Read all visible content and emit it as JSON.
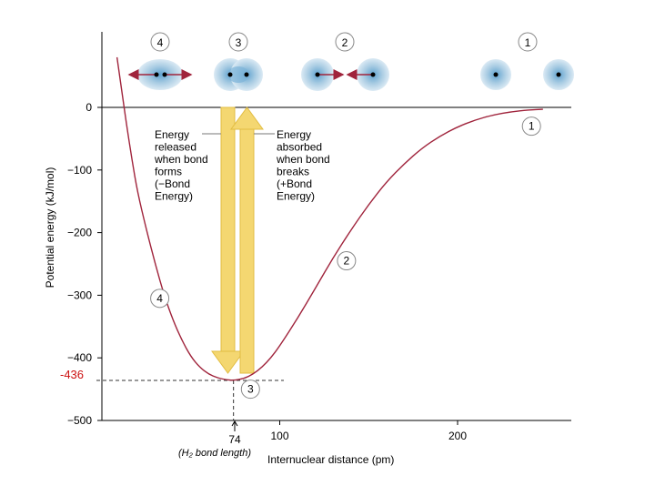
{
  "chart_data": {
    "type": "line",
    "xlabel": "Internuclear distance (pm)",
    "ylabel": "Potential energy (kJ/mol)",
    "ylim": [
      -500,
      0
    ],
    "xlim": [
      0,
      240
    ],
    "y_ticks": [
      {
        "v": 0,
        "label": "0"
      },
      {
        "v": -100,
        "label": "−100"
      },
      {
        "v": -200,
        "label": "−200"
      },
      {
        "v": -300,
        "label": "−300"
      },
      {
        "v": -400,
        "label": "−400"
      },
      {
        "v": -500,
        "label": "−500"
      }
    ],
    "x_ticks": [
      {
        "v": 100,
        "label": "100"
      },
      {
        "v": 200,
        "label": "200"
      }
    ],
    "series": [
      {
        "color": "#a0243c",
        "points": [
          [
            8.5,
            80
          ],
          [
            10,
            50
          ],
          [
            12,
            10
          ],
          [
            14,
            -30
          ],
          [
            17,
            -85
          ],
          [
            20,
            -135
          ],
          [
            25,
            -195
          ],
          [
            30,
            -250
          ],
          [
            35,
            -300
          ],
          [
            40,
            -340
          ],
          [
            45,
            -372
          ],
          [
            50,
            -398
          ],
          [
            55,
            -415
          ],
          [
            60,
            -426
          ],
          [
            65,
            -432
          ],
          [
            70,
            -435
          ],
          [
            74,
            -436
          ],
          [
            80,
            -433
          ],
          [
            85,
            -426
          ],
          [
            90,
            -415
          ],
          [
            95,
            -400
          ],
          [
            100,
            -381
          ],
          [
            110,
            -337
          ],
          [
            120,
            -289
          ],
          [
            130,
            -240
          ],
          [
            140,
            -196
          ],
          [
            150,
            -155
          ],
          [
            160,
            -119
          ],
          [
            170,
            -90
          ],
          [
            180,
            -65
          ],
          [
            190,
            -46
          ],
          [
            200,
            -31
          ],
          [
            210,
            -20
          ],
          [
            220,
            -12
          ],
          [
            230,
            -7
          ],
          [
            240,
            -4
          ],
          [
            248,
            -3
          ]
        ]
      }
    ],
    "minimum": {
      "x": 74,
      "y": -436,
      "y_label": "-436",
      "x_label": "74",
      "x_note": "(H₂ bond length)"
    },
    "curve_markers": [
      {
        "label": "1",
        "x": 240,
        "y": -30
      },
      {
        "label": "2",
        "x": 136,
        "y": -245
      },
      {
        "label": "3",
        "x": 82,
        "y": -450
      },
      {
        "label": "4",
        "x": 31,
        "y": -305
      }
    ],
    "arrows": [
      {
        "direction": "down",
        "text": [
          "Energy",
          "released",
          "when bond",
          "forms",
          "(−Bond",
          "Energy)"
        ]
      },
      {
        "direction": "up",
        "text": [
          "Energy",
          "absorbed",
          "when bond",
          "breaks",
          "(+Bond",
          "Energy)"
        ]
      }
    ],
    "atom_panels": [
      {
        "label": "4",
        "state": "too-close-repulsion"
      },
      {
        "label": "3",
        "state": "bonded"
      },
      {
        "label": "2",
        "state": "approaching"
      },
      {
        "label": "1",
        "state": "far-apart"
      }
    ],
    "colors": {
      "curve": "#a0243c",
      "arrow": "#f2d36b",
      "highlight": "#cc1111",
      "cloud": "#a9cce3",
      "axis": "#000000"
    }
  }
}
